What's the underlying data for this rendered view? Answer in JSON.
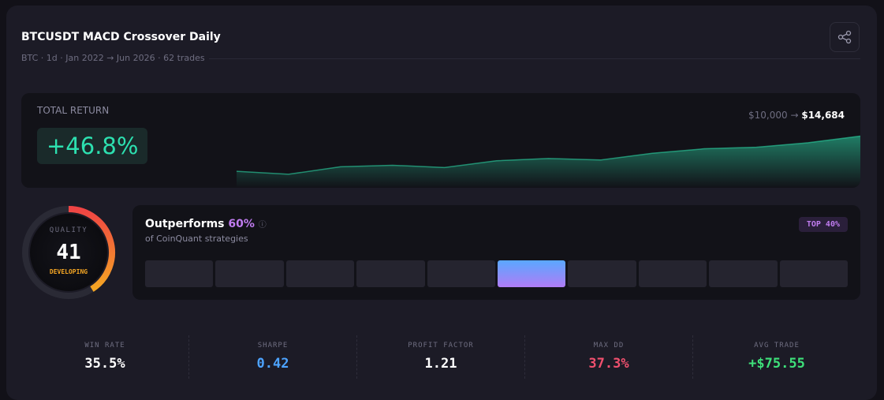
{
  "header": {
    "title": "BTCUSDT MACD Crossover Daily",
    "subtitle": "BTC · 1d · Jan 2022 → Jun 2026 · 62 trades"
  },
  "total_return": {
    "label": "TOTAL RETURN",
    "value": "+46.8%",
    "start": "$10,000",
    "end": "$14,684"
  },
  "equity_curve": {
    "values": [
      10000,
      9600,
      10600,
      10800,
      10500,
      11400,
      11700,
      11500,
      12400,
      13000,
      13200,
      13800,
      14684
    ],
    "ylim": [
      7800,
      16000
    ],
    "color": "#2bd4a4"
  },
  "quality": {
    "label": "QUALITY",
    "score": 41,
    "range": [
      0,
      100
    ],
    "grade": "DEVELOPING"
  },
  "percentile": {
    "prefix": "Outperforms",
    "value": 60,
    "label": "60%",
    "caption": "of CoinQuant strategies",
    "badge": "TOP 40%",
    "segments": 10
  },
  "metrics": [
    {
      "label": "WIN RATE",
      "value": "35.5%",
      "color": "#ffffff"
    },
    {
      "label": "SHARPE",
      "value": "0.42",
      "color": "#4da3ff"
    },
    {
      "label": "PROFIT FACTOR",
      "value": "1.21",
      "color": "#ffffff"
    },
    {
      "label": "MAX DD",
      "value": "37.3%",
      "color": "#f0506e"
    },
    {
      "label": "AVG TRADE",
      "value": "+$75.55",
      "color": "#3ee07a"
    }
  ]
}
